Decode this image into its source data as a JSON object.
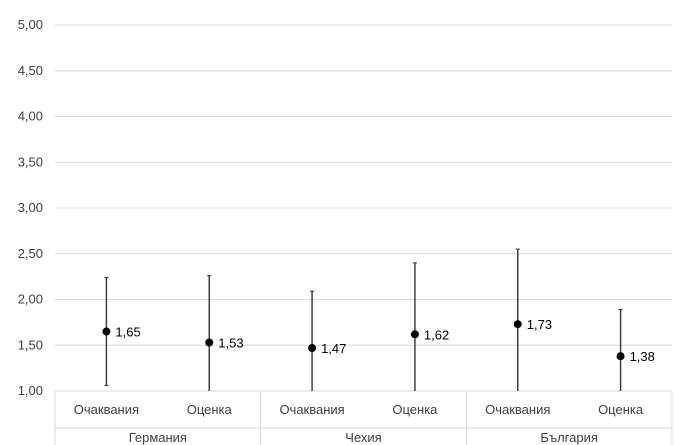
{
  "chart_data": {
    "type": "scatter",
    "title": "",
    "xlabel": "",
    "ylabel": "",
    "ylim": [
      1.0,
      5.0
    ],
    "yticks": [
      "1,00",
      "1,50",
      "2,00",
      "2,50",
      "3,00",
      "3,50",
      "4,00",
      "4,50",
      "5,00"
    ],
    "grid": true,
    "groups": [
      {
        "label": "Германия",
        "points": [
          {
            "category": "Очаквания",
            "value": 1.65,
            "value_label": "1,65",
            "error_low": 1.06,
            "error_high": 2.24
          },
          {
            "category": "Оценка",
            "value": 1.53,
            "value_label": "1,53",
            "error_low": 1.0,
            "error_high": 2.26
          }
        ]
      },
      {
        "label": "Чехия",
        "points": [
          {
            "category": "Очаквания",
            "value": 1.47,
            "value_label": "1,47",
            "error_low": 1.0,
            "error_high": 2.09
          },
          {
            "category": "Оценка",
            "value": 1.62,
            "value_label": "1,62",
            "error_low": 1.0,
            "error_high": 2.4
          }
        ]
      },
      {
        "label": "България",
        "points": [
          {
            "category": "Очаквания",
            "value": 1.73,
            "value_label": "1,73",
            "error_low": 1.0,
            "error_high": 2.55
          },
          {
            "category": "Оценка",
            "value": 1.38,
            "value_label": "1,38",
            "error_low": 1.0,
            "error_high": 1.89
          }
        ]
      }
    ],
    "colors": {
      "marker": "#000000",
      "error_bar": "#404040",
      "grid": "#d9d9d9",
      "axis_text": "#404040"
    }
  }
}
